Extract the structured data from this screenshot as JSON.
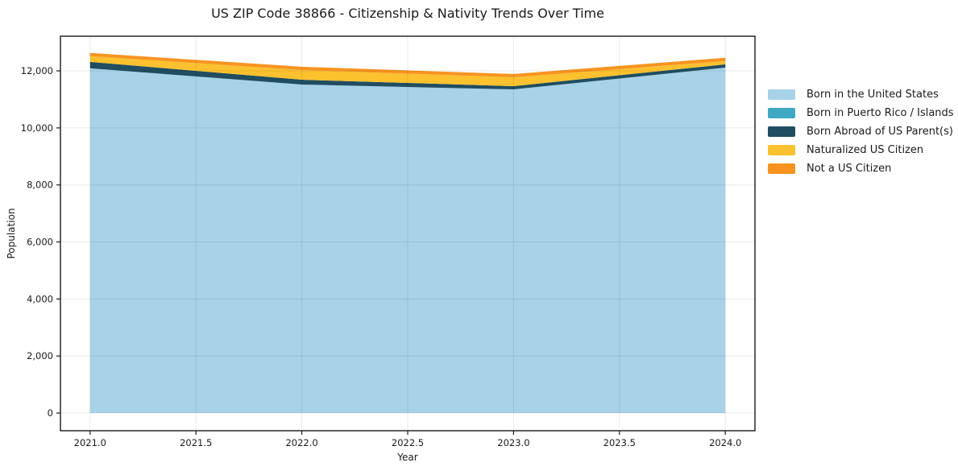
{
  "chart_data": {
    "type": "area",
    "stacked": true,
    "title": "US ZIP Code 38866 - Citizenship & Nativity Trends Over Time",
    "xlabel": "Year",
    "ylabel": "Population",
    "x": [
      2021,
      2022,
      2023,
      2024
    ],
    "series": [
      {
        "name": "Born in the United States",
        "color": "#a7d2e8",
        "values": [
          12090,
          11520,
          11350,
          12115
        ]
      },
      {
        "name": "Born in Puerto Rico / Islands",
        "color": "#3fa8c2",
        "values": [
          0,
          0,
          0,
          0
        ]
      },
      {
        "name": "Born Abroad of US Parent(s)",
        "color": "#204d60",
        "values": [
          225,
          170,
          115,
          115
        ]
      },
      {
        "name": "Naturalized US Citizen",
        "color": "#fcc12e",
        "values": [
          200,
          340,
          310,
          115
        ]
      },
      {
        "name": "Not a US Citizen",
        "color": "#f79420",
        "values": [
          115,
          115,
          115,
          115
        ]
      }
    ],
    "x_ticks": [
      2021.0,
      2021.5,
      2022.0,
      2022.5,
      2023.0,
      2023.5,
      2024.0
    ],
    "x_tick_labels": [
      "2021.0",
      "2021.5",
      "2022.0",
      "2022.5",
      "2023.0",
      "2023.5",
      "2024.0"
    ],
    "y_ticks": [
      0,
      2000,
      4000,
      6000,
      8000,
      10000,
      12000
    ],
    "y_tick_labels": [
      "0",
      "2,000",
      "4,000",
      "6,000",
      "8,000",
      "10,000",
      "12,000"
    ],
    "xlim": [
      2020.86,
      2024.14
    ],
    "ylim": [
      -620,
      13215
    ],
    "grid": true,
    "legend_position": "right-outside",
    "colors": {
      "spine": "#1a1a1a",
      "tick_text": "#1a1a1a",
      "grid_rgba": "rgba(0,0,0,0.08)",
      "background": "#ffffff"
    }
  }
}
